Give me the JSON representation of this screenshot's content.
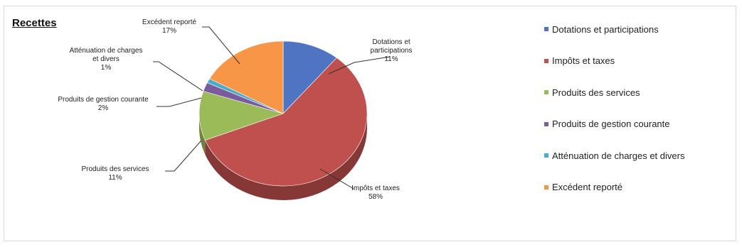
{
  "chart_data": {
    "type": "pie",
    "title": "Recettes",
    "slices": [
      {
        "name": "Dotations et participations",
        "percent": 11,
        "label_lines": [
          "Dotations et",
          "participations",
          "11%"
        ],
        "color": "#4f74c2"
      },
      {
        "name": "Impôts et taxes",
        "percent": 58,
        "label_lines": [
          "Impôts et taxes",
          "58%"
        ],
        "color": "#c0504d"
      },
      {
        "name": "Produits des services",
        "percent": 11,
        "label_lines": [
          "Produits des services",
          "11%"
        ],
        "color": "#9bbb59"
      },
      {
        "name": "Produits de gestion courante",
        "percent": 2,
        "label_lines": [
          "Produits de gestion courante",
          "2%"
        ],
        "color": "#7a5c9e"
      },
      {
        "name": "Atténuation de charges et divers",
        "percent": 1,
        "label_lines": [
          "Atténuation de charges",
          "et divers",
          "1%"
        ],
        "color": "#4bacc6"
      },
      {
        "name": "Excédent reporté",
        "percent": 17,
        "label_lines": [
          "Excédent reporté",
          "17%"
        ],
        "color": "#f79646"
      }
    ],
    "legend_position": "right"
  }
}
